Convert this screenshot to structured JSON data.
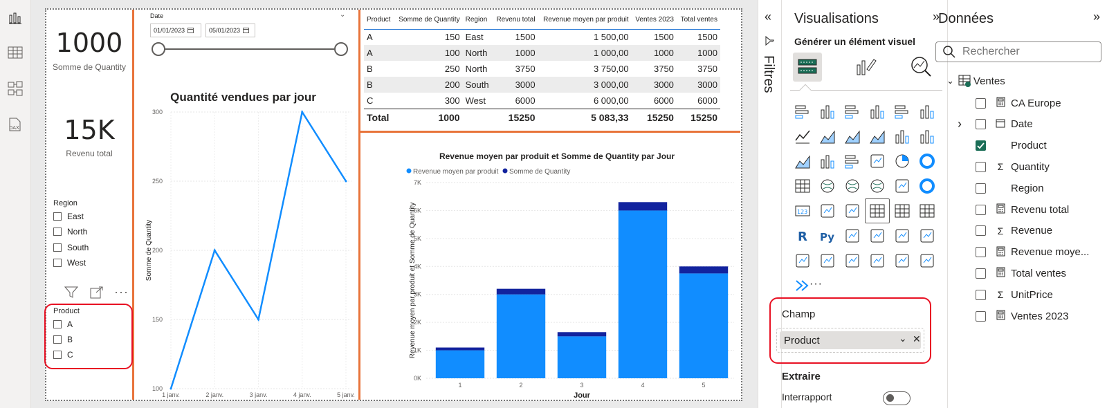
{
  "nav": {
    "icons": [
      "report-view-icon",
      "table-view-icon",
      "model-view-icon",
      "dax-query-icon"
    ],
    "dax_label": "DAX"
  },
  "kpi": {
    "qty_value": "1000",
    "qty_label": "Somme de Quantity",
    "rev_value": "15K",
    "rev_label": "Revenu total"
  },
  "region_slicer": {
    "title": "Region",
    "items": [
      "East",
      "North",
      "South",
      "West"
    ]
  },
  "product_slicer": {
    "title": "Product",
    "items": [
      "A",
      "B",
      "C"
    ]
  },
  "date_slicer": {
    "title": "Date",
    "start": "01/01/2023",
    "end": "05/01/2023"
  },
  "matrix": {
    "headers": [
      "Product",
      "Somme de Quantity",
      "Region",
      "Revenu total",
      "Revenue moyen par produit",
      "Ventes 2023",
      "Total ventes"
    ],
    "rows": [
      [
        "A",
        "150",
        "East",
        "1500",
        "1 500,00",
        "1500",
        "1500"
      ],
      [
        "A",
        "100",
        "North",
        "1000",
        "1 000,00",
        "1000",
        "1000"
      ],
      [
        "B",
        "250",
        "North",
        "3750",
        "3 750,00",
        "3750",
        "3750"
      ],
      [
        "B",
        "200",
        "South",
        "3000",
        "3 000,00",
        "3000",
        "3000"
      ],
      [
        "C",
        "300",
        "West",
        "6000",
        "6 000,00",
        "6000",
        "6000"
      ]
    ],
    "total": [
      "Total",
      "1000",
      "",
      "15250",
      "5 083,33",
      "15250",
      "15250"
    ]
  },
  "chart_data": [
    {
      "type": "line",
      "title": "Quantité vendues par jour",
      "xlabel": "",
      "ylabel": "Somme de Quantity",
      "categories": [
        "1 janv.",
        "2 janv.",
        "3 janv.",
        "4 janv.",
        "5 janv."
      ],
      "values": [
        100,
        200,
        150,
        300,
        250
      ],
      "ylim": [
        100,
        300
      ],
      "yticks": [
        100,
        150,
        200,
        250,
        300
      ],
      "color": "#118dff",
      "grid": true
    },
    {
      "type": "bar",
      "stacked": true,
      "title": "Revenue moyen par produit et Somme de Quantity par Jour",
      "xlabel": "Jour",
      "ylabel": "Revenue moyen par produit et Somme de Quantity",
      "categories": [
        "1",
        "2",
        "3",
        "4",
        "5"
      ],
      "series": [
        {
          "name": "Revenue moyen par produit",
          "values": [
            1000,
            3000,
            1500,
            6000,
            3750
          ],
          "color": "#118dff"
        },
        {
          "name": "Somme de Quantity",
          "values": [
            100,
            200,
            150,
            300,
            250
          ],
          "color": "#12239e"
        }
      ],
      "ylim": [
        0,
        7000
      ],
      "yticks": [
        "0K",
        "1K",
        "2K",
        "3K",
        "4K",
        "5K",
        "6K",
        "7K"
      ],
      "legend": "top-left",
      "grid": true
    }
  ],
  "filters": {
    "label": "Filtres"
  },
  "visualizations": {
    "title": "Visualisations",
    "subtitle": "Générer un élément visuel",
    "more": "···",
    "field_well_title": "Champ",
    "field_value": "Product",
    "extract_title": "Extraire",
    "cross_report": "Interrapport"
  },
  "data_pane": {
    "title": "Données",
    "search_placeholder": "Rechercher",
    "table_name": "Ventes",
    "fields": [
      {
        "name": "CA Europe",
        "type": "calc",
        "checked": false,
        "expand": false
      },
      {
        "name": "Date",
        "type": "date",
        "checked": false,
        "expand": true
      },
      {
        "name": "Product",
        "type": "none",
        "checked": true,
        "expand": false
      },
      {
        "name": "Quantity",
        "type": "sigma",
        "checked": false,
        "expand": false
      },
      {
        "name": "Region",
        "type": "none",
        "checked": false,
        "expand": false
      },
      {
        "name": "Revenu total",
        "type": "calc",
        "checked": false,
        "expand": false
      },
      {
        "name": "Revenue",
        "type": "sigma",
        "checked": false,
        "expand": false
      },
      {
        "name": "Revenue moye...",
        "type": "calc",
        "checked": false,
        "expand": false
      },
      {
        "name": "Total ventes",
        "type": "calc",
        "checked": false,
        "expand": false
      },
      {
        "name": "UnitPrice",
        "type": "sigma",
        "checked": false,
        "expand": false
      },
      {
        "name": "Ventes 2023",
        "type": "calc",
        "checked": false,
        "expand": false
      }
    ]
  }
}
